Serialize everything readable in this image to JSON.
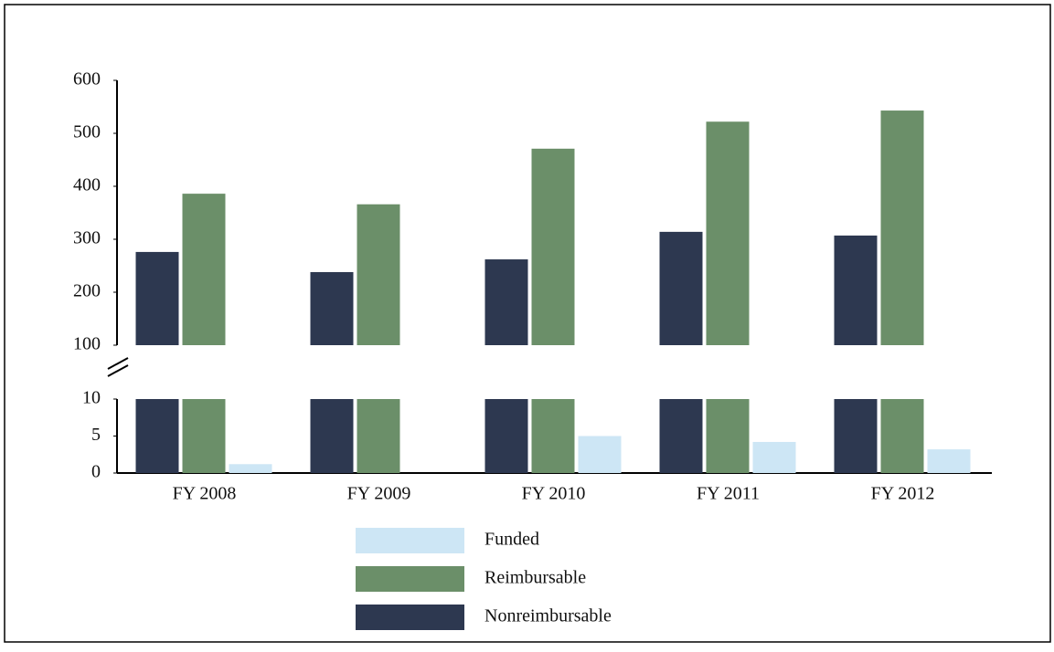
{
  "chart_data": {
    "type": "bar",
    "categories": [
      "FY 2008",
      "FY 2009",
      "FY 2010",
      "FY 2011",
      "FY 2012"
    ],
    "series": [
      {
        "name": "Nonreimbursable",
        "color": "#2d3850",
        "values": [
          276,
          238,
          262,
          314,
          307
        ]
      },
      {
        "name": "Reimbursable",
        "color": "#6b8f69",
        "values": [
          386,
          366,
          471,
          522,
          543
        ]
      },
      {
        "name": "Funded",
        "color": "#cde6f5",
        "values": [
          1.2,
          0,
          5,
          4.2,
          3.2
        ]
      }
    ],
    "ylim": [
      100,
      600
    ],
    "yticks": [
      100,
      200,
      300,
      400,
      500,
      600
    ],
    "lower_ylim": [
      0,
      10
    ],
    "lower_yticks": [
      0,
      5,
      10
    ],
    "grid": false
  }
}
